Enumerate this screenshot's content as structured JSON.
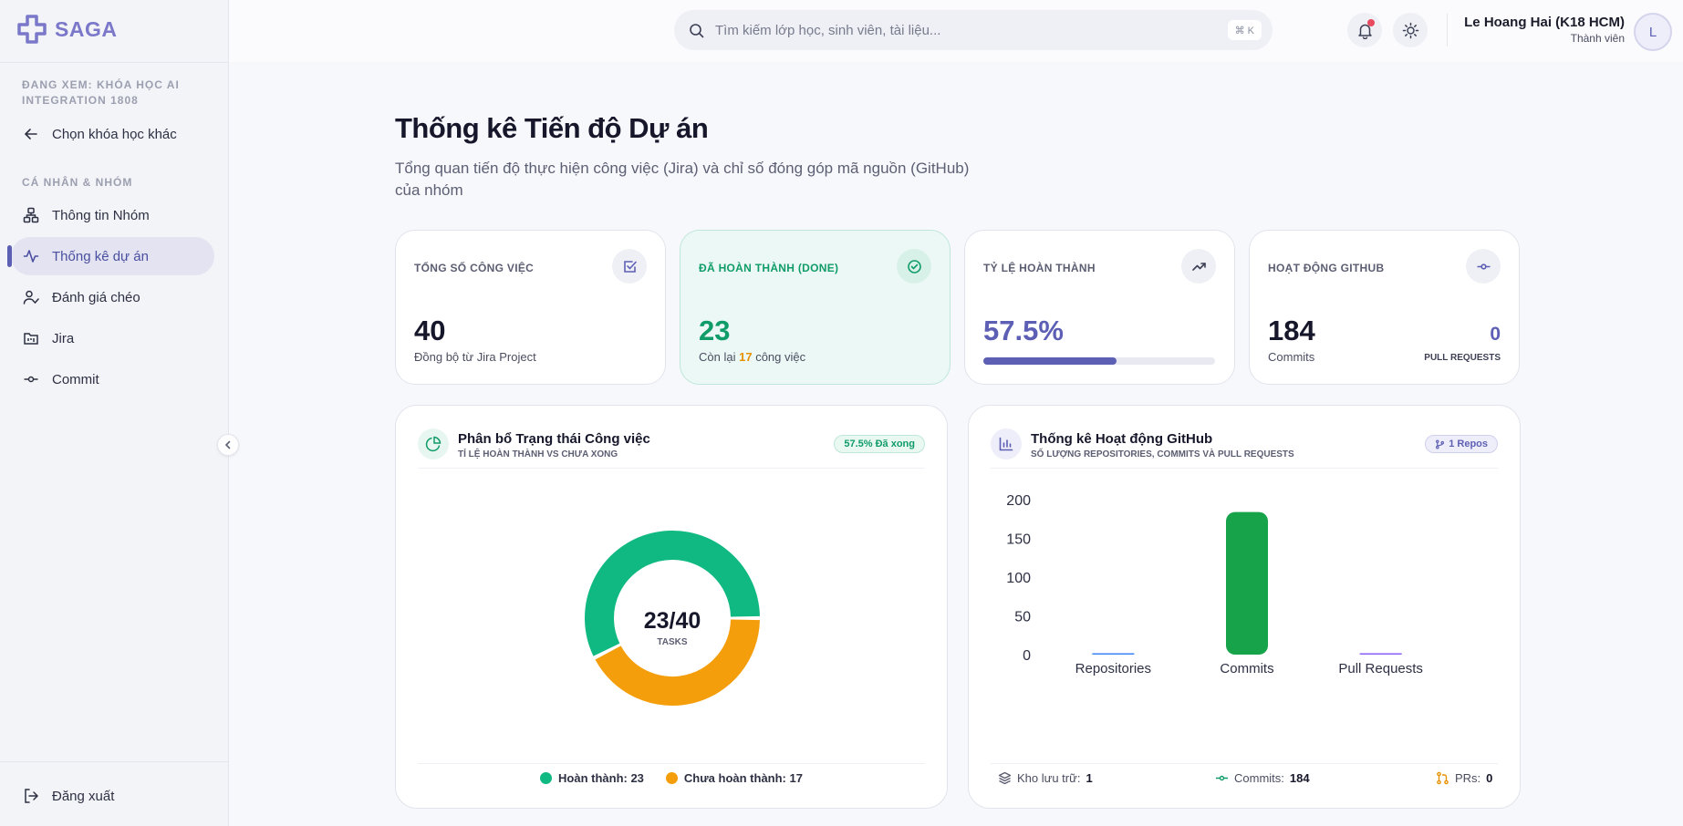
{
  "app": {
    "name": "SAGA"
  },
  "sidebar": {
    "viewing": "ĐANG XEM: KHÓA HỌC AI INTEGRATION 1808",
    "back_label": "Chọn khóa học khác",
    "section_label": "CÁ NHÂN & NHÓM",
    "items": [
      {
        "label": "Thông tin Nhóm",
        "icon": "network-icon"
      },
      {
        "label": "Thống kê dự án",
        "icon": "activity-icon",
        "active": true
      },
      {
        "label": "Đánh giá chéo",
        "icon": "user-check-icon"
      },
      {
        "label": "Jira",
        "icon": "folder-kanban-icon"
      },
      {
        "label": "Commit",
        "icon": "commit-icon"
      }
    ],
    "logout_label": "Đăng xuất"
  },
  "header": {
    "search_placeholder": "Tìm kiếm lớp học, sinh viên, tài liệu...",
    "shortcut": "⌘ K",
    "user_name": "Le Hoang Hai (K18 HCM)",
    "user_role": "Thành viên",
    "avatar_letter": "L"
  },
  "main": {
    "title": "Thống kê Tiến độ Dự án",
    "subtitle": "Tổng quan tiến độ thực hiện công việc (Jira) và chỉ số đóng góp mã nguồn (GitHub) của nhóm",
    "stats": {
      "total": {
        "label": "TỔNG SỐ CÔNG VIỆC",
        "value": "40",
        "foot": "Đồng bộ từ Jira Project"
      },
      "done": {
        "label": "ĐÃ HOÀN THÀNH (DONE)",
        "value": "23",
        "foot_prefix": "Còn lại",
        "foot_count": "17",
        "foot_suffix": "công việc"
      },
      "rate": {
        "label": "TỶ LỆ HOÀN THÀNH",
        "value": "57.5%",
        "progress": 0.575
      },
      "github": {
        "label": "HOẠT ĐỘNG GITHUB",
        "value": "184",
        "foot": "Commits",
        "pr_count": "0",
        "pr_label": "PULL REQUESTS"
      }
    },
    "status_panel": {
      "title": "Phân bổ Trạng thái Công việc",
      "subtitle": "TỈ LỆ HOÀN THÀNH VS CHƯA XONG",
      "badge": "57.5% Đã xong",
      "center_value": "23/40",
      "center_label": "TASKS",
      "legend_done": "Hoàn thành: 23",
      "legend_todo": "Chưa hoàn thành: 17"
    },
    "github_panel": {
      "title": "Thống kê Hoạt động GitHub",
      "subtitle": "SỐ LƯỢNG REPOSITORIES, COMMITS VÀ PULL REQUESTS",
      "badge": "1 Repos",
      "foot_repos_label": "Kho lưu trữ:",
      "foot_repos_value": "1",
      "foot_commits_label": "Commits:",
      "foot_commits_value": "184",
      "foot_prs_label": "PRs:",
      "foot_prs_value": "0"
    }
  },
  "chart_data": [
    {
      "type": "pie",
      "labels": [
        "Hoàn thành",
        "Chưa hoàn thành"
      ],
      "values": [
        23,
        17
      ],
      "colors": [
        "#10b981",
        "#f59e0b"
      ],
      "donut": true
    },
    {
      "type": "bar",
      "categories": [
        "Repositories",
        "Commits",
        "Pull Requests"
      ],
      "values": [
        1,
        184,
        0
      ],
      "colors": [
        "#3b82f6",
        "#16a34a",
        "#8b5cf6"
      ],
      "ylim": [
        0,
        200
      ],
      "yticks": [
        0,
        50,
        100,
        150,
        200
      ],
      "grid": false
    }
  ],
  "colors": {
    "accent": "#5d5fb5",
    "success": "#0f9c68",
    "warning": "#e69100",
    "bar": "#16a34a"
  }
}
